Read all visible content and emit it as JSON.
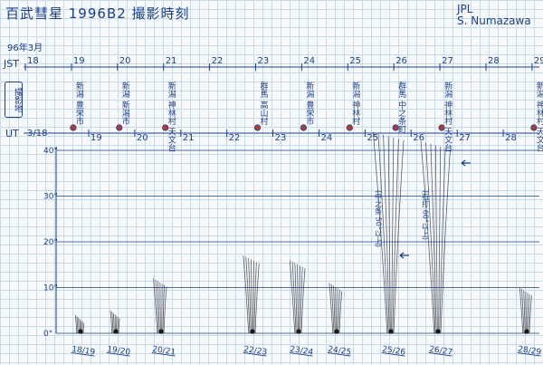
{
  "title": "百武彗星 1996B2 撮影時刻",
  "author": {
    "lab": "JPL",
    "name": "S. Numazawa"
  },
  "date_note": "96年3月",
  "axes": {
    "jst_label": "JST",
    "ut_label": "UT",
    "jst_ticks": [
      "18",
      "19",
      "20",
      "21",
      "22",
      "23",
      "24",
      "25",
      "26",
      "27",
      "28",
      "29"
    ],
    "ut_start": "3/18",
    "ut_ticks": [
      "19",
      "20",
      "21",
      "22",
      "23",
      "24",
      "25",
      "26",
      "27",
      "28"
    ]
  },
  "location_label": "撮影地",
  "locations": [
    {
      "jst_day": 19,
      "text": "新潟 豊栄市"
    },
    {
      "jst_day": 20,
      "text": "新潟 新潟市"
    },
    {
      "jst_day": 21,
      "text": "新潟 神林村 天文台"
    },
    {
      "jst_day": 23,
      "text": "群馬 高山村"
    },
    {
      "jst_day": 24,
      "text": "新潟 豊栄市"
    },
    {
      "jst_day": 25,
      "text": "新潟 神林村"
    },
    {
      "jst_day": 26,
      "text": "群馬 中之条町"
    },
    {
      "jst_day": 27,
      "text": "新潟 神林村 天文台"
    },
    {
      "jst_day": 29,
      "text": "新潟 神林村 天文台"
    }
  ],
  "y_axis": {
    "ticks": [
      "0°",
      "10°",
      "20°",
      "30°",
      "40°"
    ],
    "max": 40
  },
  "observations": [
    {
      "label": "18/19",
      "tail_deg": 4
    },
    {
      "label": "19/20",
      "tail_deg": 5
    },
    {
      "label": "20/21",
      "tail_deg": 12
    },
    {
      "label": "22/23",
      "tail_deg": 17
    },
    {
      "label": "23/24",
      "tail_deg": 16
    },
    {
      "label": "24/25",
      "tail_deg": 11
    },
    {
      "label": "25/26",
      "tail_deg": 44
    },
    {
      "label": "26/27",
      "tail_deg": 42
    },
    {
      "label": "28/29",
      "tail_deg": 10
    }
  ],
  "annotations": [
    {
      "label": "25/26",
      "text": "(中之条 50°以上)"
    },
    {
      "label": "26/27",
      "text": "(石打 60°以上)"
    }
  ]
}
